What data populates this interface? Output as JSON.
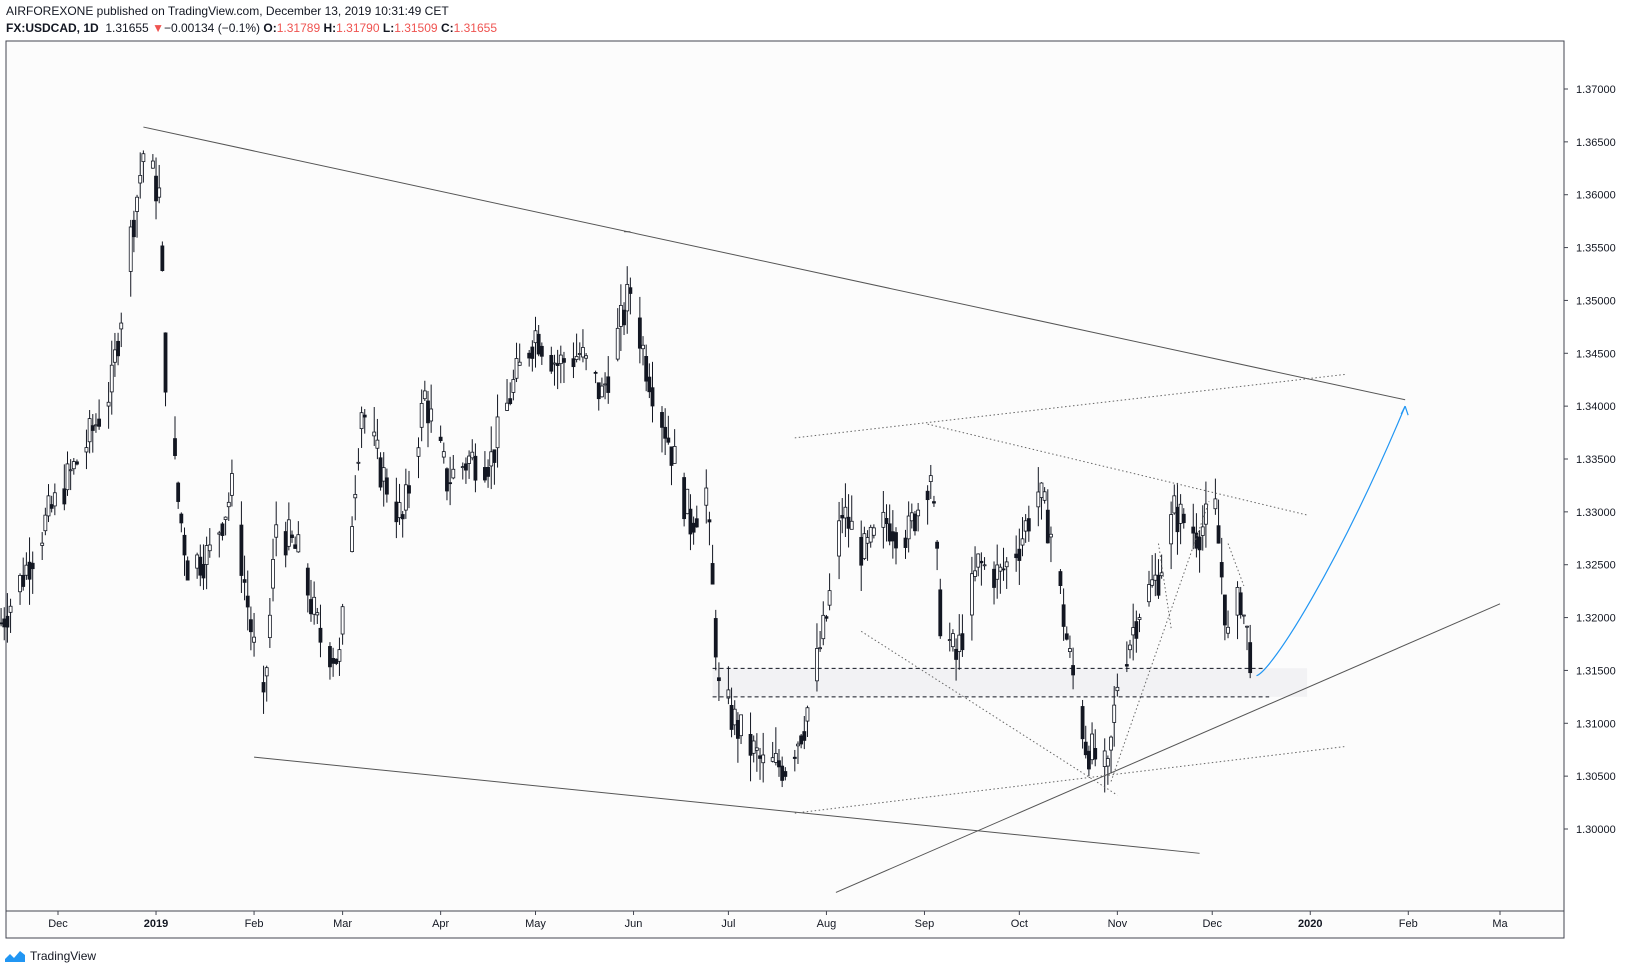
{
  "header": {
    "publisher_line": "AIRFOREXONE published on TradingView.com, December 13, 2019 10:31:49 CET",
    "symbol": "FX:USDCAD, 1D",
    "last": "1.31655",
    "change_arrow": "▼",
    "change": "−0.00134 (−0.1%)",
    "open_label": "O:",
    "open": "1.31789",
    "high_label": "H:",
    "high": "1.31790",
    "low_label": "L:",
    "low": "1.31509",
    "close_label": "C:",
    "close": "1.31655"
  },
  "footer": {
    "brand": "TradingView",
    "logo_icon": "tradingview-logo-icon"
  },
  "colors": {
    "down": "#ef5350",
    "candle": "#131722",
    "projection": "#2196f3",
    "zone": "#ebebef"
  },
  "chart_data": {
    "type": "candlestick",
    "title": "FX:USDCAD, 1D",
    "ylim": [
      1.2945,
      1.3745
    ],
    "y_ticks": [
      "1.37000",
      "1.36500",
      "1.36000",
      "1.35500",
      "1.35000",
      "1.34500",
      "1.34000",
      "1.33500",
      "1.33000",
      "1.32500",
      "1.32000",
      "1.31500",
      "1.31000",
      "1.30500",
      "1.30000"
    ],
    "x_ticks": [
      {
        "label": "Dec",
        "date": "2018-12-01"
      },
      {
        "label": "2019",
        "date": "2019-01-01",
        "bold": true
      },
      {
        "label": "Feb",
        "date": "2019-02-01"
      },
      {
        "label": "Mar",
        "date": "2019-03-01"
      },
      {
        "label": "Apr",
        "date": "2019-04-01"
      },
      {
        "label": "May",
        "date": "2019-05-01"
      },
      {
        "label": "Jun",
        "date": "2019-06-01"
      },
      {
        "label": "Jul",
        "date": "2019-07-01"
      },
      {
        "label": "Aug",
        "date": "2019-08-01"
      },
      {
        "label": "Sep",
        "date": "2019-09-01"
      },
      {
        "label": "Oct",
        "date": "2019-10-01"
      },
      {
        "label": "Nov",
        "date": "2019-11-01"
      },
      {
        "label": "Dec",
        "date": "2019-12-01"
      },
      {
        "label": "2020",
        "date": "2020-01-01",
        "bold": true
      },
      {
        "label": "Feb",
        "date": "2020-02-01"
      },
      {
        "label": "Ma",
        "date": "2020-03-01"
      }
    ],
    "price_path": [
      [
        "2018-11-13",
        1.3195
      ],
      [
        "2018-11-20",
        1.324
      ],
      [
        "2018-11-27",
        1.329
      ],
      [
        "2018-12-04",
        1.333
      ],
      [
        "2018-12-11",
        1.337
      ],
      [
        "2018-12-18",
        1.342
      ],
      [
        "2018-12-24",
        1.356
      ],
      [
        "2018-12-28",
        1.364
      ],
      [
        "2019-01-02",
        1.36
      ],
      [
        "2019-01-04",
        1.343
      ],
      [
        "2019-01-08",
        1.331
      ],
      [
        "2019-01-11",
        1.325
      ],
      [
        "2019-01-18",
        1.326
      ],
      [
        "2019-01-25",
        1.332
      ],
      [
        "2019-01-31",
        1.319
      ],
      [
        "2019-02-04",
        1.311
      ],
      [
        "2019-02-08",
        1.329
      ],
      [
        "2019-02-15",
        1.326
      ],
      [
        "2019-02-22",
        1.318
      ],
      [
        "2019-02-28",
        1.316
      ],
      [
        "2019-03-07",
        1.34
      ],
      [
        "2019-03-13",
        1.334
      ],
      [
        "2019-03-20",
        1.329
      ],
      [
        "2019-03-27",
        1.341
      ],
      [
        "2019-04-03",
        1.333
      ],
      [
        "2019-04-10",
        1.335
      ],
      [
        "2019-04-17",
        1.335
      ],
      [
        "2019-04-24",
        1.342
      ],
      [
        "2019-05-01",
        1.347
      ],
      [
        "2019-05-08",
        1.344
      ],
      [
        "2019-05-15",
        1.345
      ],
      [
        "2019-05-22",
        1.341
      ],
      [
        "2019-05-31",
        1.351
      ],
      [
        "2019-06-05",
        1.344
      ],
      [
        "2019-06-12",
        1.337
      ],
      [
        "2019-06-19",
        1.329
      ],
      [
        "2019-06-24",
        1.332
      ],
      [
        "2019-06-28",
        1.313
      ],
      [
        "2019-07-05",
        1.309
      ],
      [
        "2019-07-12",
        1.306
      ],
      [
        "2019-07-19",
        1.306
      ],
      [
        "2019-07-25",
        1.31
      ],
      [
        "2019-08-01",
        1.32
      ],
      [
        "2019-08-06",
        1.33
      ],
      [
        "2019-08-13",
        1.326
      ],
      [
        "2019-08-20",
        1.329
      ],
      [
        "2019-08-27",
        1.328
      ],
      [
        "2019-09-03",
        1.334
      ],
      [
        "2019-09-06",
        1.32
      ],
      [
        "2019-09-11",
        1.316
      ],
      [
        "2019-09-18",
        1.325
      ],
      [
        "2019-09-25",
        1.324
      ],
      [
        "2019-10-01",
        1.327
      ],
      [
        "2019-10-07",
        1.332
      ],
      [
        "2019-10-11",
        1.328
      ],
      [
        "2019-10-17",
        1.316
      ],
      [
        "2019-10-22",
        1.308
      ],
      [
        "2019-10-29",
        1.305
      ],
      [
        "2019-11-01",
        1.314
      ],
      [
        "2019-11-08",
        1.321
      ],
      [
        "2019-11-14",
        1.324
      ],
      [
        "2019-11-19",
        1.33
      ],
      [
        "2019-11-26",
        1.328
      ],
      [
        "2019-12-02",
        1.33
      ],
      [
        "2019-12-06",
        1.318
      ],
      [
        "2019-12-10",
        1.322
      ],
      [
        "2019-12-13",
        1.3166
      ]
    ],
    "zone": {
      "from": "2019-06-26",
      "to": "2019-12-31",
      "top": 1.3152,
      "bottom": 1.3125
    },
    "trendlines": [
      {
        "kind": "solid",
        "from": [
          "2018-12-28",
          1.3664
        ],
        "to": [
          "2020-01-31",
          1.3406
        ]
      },
      {
        "kind": "solid",
        "from": [
          "2019-02-01",
          1.3068
        ],
        "to": [
          "2019-11-27",
          1.2977
        ]
      },
      {
        "kind": "solid",
        "from": [
          "2019-08-04",
          1.294
        ],
        "to": [
          "2020-03-01",
          1.3213
        ]
      },
      {
        "kind": "solid",
        "from": [
          "2019-05-29",
          1.3565
        ],
        "to": [
          "2019-05-31",
          1.3565
        ]
      },
      {
        "kind": "dotted",
        "from": [
          "2019-07-22",
          1.337
        ],
        "to": [
          "2020-01-12",
          1.343
        ]
      },
      {
        "kind": "dotted",
        "from": [
          "2019-09-02",
          1.3383
        ],
        "to": [
          "2019-12-31",
          1.3297
        ]
      },
      {
        "kind": "dotted",
        "from": [
          "2019-08-12",
          1.3187
        ],
        "to": [
          "2019-11-01",
          1.3032
        ]
      },
      {
        "kind": "dotted",
        "from": [
          "2019-07-22",
          1.3015
        ],
        "to": [
          "2020-01-12",
          1.3078
        ]
      },
      {
        "kind": "dotted",
        "from": [
          "2019-10-30",
          1.3045
        ],
        "to": [
          "2019-11-30",
          1.331
        ]
      },
      {
        "kind": "dotted",
        "from": [
          "2019-11-14",
          1.327
        ],
        "to": [
          "2019-11-18",
          1.319
        ]
      },
      {
        "kind": "dotted",
        "from": [
          "2019-12-06",
          1.327
        ],
        "to": [
          "2019-12-11",
          1.323
        ]
      },
      {
        "kind": "dashed",
        "from": [
          "2019-06-26",
          1.3152
        ],
        "to": [
          "2019-12-17",
          1.3152
        ]
      },
      {
        "kind": "dashed",
        "from": [
          "2019-06-26",
          1.3125
        ],
        "to": [
          "2019-12-19",
          1.3125
        ]
      }
    ],
    "projection": [
      [
        "2019-12-15",
        1.3145
      ],
      [
        "2019-12-20",
        1.315
      ],
      [
        "2020-01-10",
        1.325
      ],
      [
        "2020-01-31",
        1.34
      ]
    ],
    "grid": false,
    "legend": "none"
  }
}
